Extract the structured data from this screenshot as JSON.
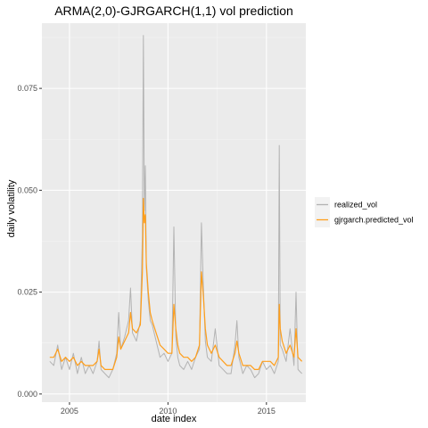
{
  "chart_data": {
    "type": "line",
    "title": "ARMA(2,0)-GJRGARCH(1,1) vol prediction",
    "xlabel": "date index",
    "ylabel": "daily volatility",
    "xlim": [
      2003.6,
      2017.0
    ],
    "ylim": [
      -0.002,
      0.091
    ],
    "x_ticks": [
      2005,
      2010,
      2015
    ],
    "x_tick_labels": [
      "2005",
      "2010",
      "2015"
    ],
    "y_ticks": [
      0.0,
      0.025,
      0.05,
      0.075
    ],
    "y_tick_labels": [
      "0.000",
      "0.025",
      "0.050",
      "0.075"
    ],
    "grid": true,
    "legend_position": "right",
    "series": [
      {
        "name": "realized_vol",
        "color": "#b3b3b3",
        "x": [
          2004.0,
          2004.2,
          2004.4,
          2004.6,
          2004.8,
          2005.0,
          2005.2,
          2005.4,
          2005.6,
          2005.8,
          2006.0,
          2006.2,
          2006.4,
          2006.5,
          2006.6,
          2006.8,
          2007.0,
          2007.2,
          2007.4,
          2007.5,
          2007.6,
          2007.8,
          2008.0,
          2008.1,
          2008.2,
          2008.4,
          2008.6,
          2008.7,
          2008.75,
          2008.8,
          2008.85,
          2008.9,
          2009.0,
          2009.1,
          2009.2,
          2009.4,
          2009.6,
          2009.8,
          2010.0,
          2010.2,
          2010.3,
          2010.4,
          2010.5,
          2010.6,
          2010.8,
          2011.0,
          2011.2,
          2011.4,
          2011.6,
          2011.7,
          2011.8,
          2011.9,
          2012.0,
          2012.2,
          2012.4,
          2012.6,
          2012.8,
          2013.0,
          2013.2,
          2013.4,
          2013.5,
          2013.6,
          2013.8,
          2014.0,
          2014.2,
          2014.4,
          2014.6,
          2014.8,
          2015.0,
          2015.2,
          2015.4,
          2015.6,
          2015.65,
          2015.7,
          2015.8,
          2016.0,
          2016.2,
          2016.4,
          2016.5,
          2016.6,
          2016.8
        ],
        "values": [
          0.008,
          0.007,
          0.012,
          0.006,
          0.009,
          0.006,
          0.01,
          0.005,
          0.009,
          0.005,
          0.007,
          0.005,
          0.008,
          0.013,
          0.006,
          0.005,
          0.004,
          0.006,
          0.01,
          0.02,
          0.011,
          0.014,
          0.018,
          0.026,
          0.015,
          0.013,
          0.018,
          0.039,
          0.088,
          0.045,
          0.056,
          0.031,
          0.023,
          0.018,
          0.017,
          0.013,
          0.009,
          0.01,
          0.008,
          0.01,
          0.041,
          0.014,
          0.009,
          0.007,
          0.006,
          0.008,
          0.006,
          0.009,
          0.011,
          0.042,
          0.026,
          0.013,
          0.009,
          0.008,
          0.016,
          0.007,
          0.006,
          0.005,
          0.005,
          0.012,
          0.018,
          0.009,
          0.005,
          0.007,
          0.006,
          0.004,
          0.005,
          0.008,
          0.006,
          0.007,
          0.005,
          0.008,
          0.061,
          0.012,
          0.011,
          0.008,
          0.016,
          0.007,
          0.025,
          0.006,
          0.005
        ]
      },
      {
        "name": "gjrgarch.predicted_vol",
        "color": "#ff9e1a",
        "x": [
          2004.0,
          2004.2,
          2004.4,
          2004.6,
          2004.8,
          2005.0,
          2005.2,
          2005.4,
          2005.6,
          2005.8,
          2006.0,
          2006.2,
          2006.4,
          2006.5,
          2006.6,
          2006.8,
          2007.0,
          2007.2,
          2007.4,
          2007.5,
          2007.6,
          2007.8,
          2008.0,
          2008.1,
          2008.2,
          2008.4,
          2008.6,
          2008.7,
          2008.75,
          2008.8,
          2008.85,
          2008.9,
          2009.0,
          2009.1,
          2009.2,
          2009.4,
          2009.6,
          2009.8,
          2010.0,
          2010.2,
          2010.3,
          2010.4,
          2010.5,
          2010.6,
          2010.8,
          2011.0,
          2011.2,
          2011.4,
          2011.6,
          2011.7,
          2011.8,
          2011.9,
          2012.0,
          2012.2,
          2012.4,
          2012.6,
          2012.8,
          2013.0,
          2013.2,
          2013.4,
          2013.5,
          2013.6,
          2013.8,
          2014.0,
          2014.2,
          2014.4,
          2014.6,
          2014.8,
          2015.0,
          2015.2,
          2015.4,
          2015.6,
          2015.65,
          2015.7,
          2015.8,
          2016.0,
          2016.2,
          2016.4,
          2016.5,
          2016.6,
          2016.8
        ],
        "values": [
          0.009,
          0.009,
          0.011,
          0.008,
          0.009,
          0.008,
          0.009,
          0.007,
          0.008,
          0.007,
          0.007,
          0.007,
          0.008,
          0.011,
          0.007,
          0.006,
          0.006,
          0.006,
          0.009,
          0.014,
          0.011,
          0.013,
          0.015,
          0.02,
          0.016,
          0.015,
          0.017,
          0.03,
          0.048,
          0.042,
          0.044,
          0.032,
          0.025,
          0.02,
          0.018,
          0.015,
          0.012,
          0.011,
          0.01,
          0.01,
          0.022,
          0.016,
          0.012,
          0.01,
          0.009,
          0.009,
          0.008,
          0.009,
          0.012,
          0.03,
          0.024,
          0.016,
          0.012,
          0.01,
          0.012,
          0.009,
          0.008,
          0.007,
          0.007,
          0.01,
          0.013,
          0.01,
          0.007,
          0.007,
          0.007,
          0.006,
          0.006,
          0.008,
          0.008,
          0.008,
          0.007,
          0.009,
          0.022,
          0.016,
          0.013,
          0.01,
          0.012,
          0.009,
          0.016,
          0.009,
          0.008
        ]
      }
    ]
  }
}
